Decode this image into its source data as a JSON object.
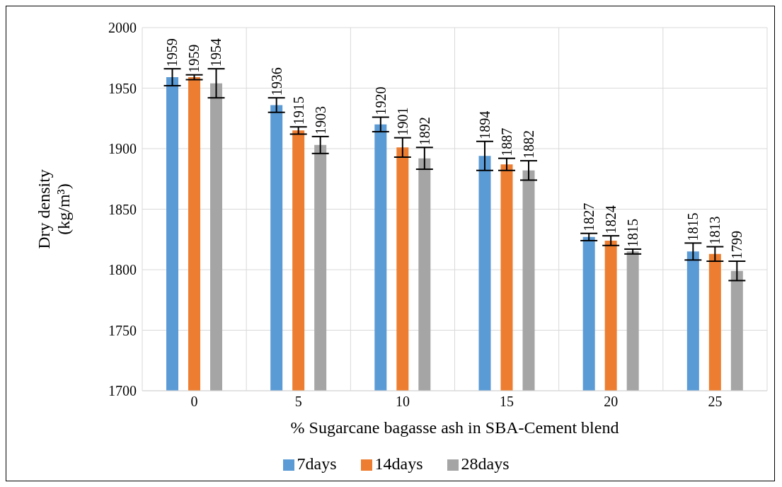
{
  "chart_data": {
    "type": "bar",
    "xlabel": "% Sugarcane bagasse ash in SBA-Cement blend",
    "ylabel": "Dry density\n(kg/m³)",
    "categories": [
      "0",
      "5",
      "10",
      "15",
      "20",
      "25"
    ],
    "series": [
      {
        "name": "7days",
        "color": "#5b9bd5",
        "values": [
          1959,
          1936,
          1920,
          1894,
          1827,
          1815
        ],
        "errors": [
          7,
          6,
          6,
          12,
          3,
          7
        ]
      },
      {
        "name": "14days",
        "color": "#ed7d31",
        "values": [
          1959,
          1915,
          1901,
          1887,
          1824,
          1813
        ],
        "errors": [
          2,
          3,
          8,
          5,
          4,
          6
        ]
      },
      {
        "name": "28days",
        "color": "#a5a5a5",
        "values": [
          1954,
          1903,
          1892,
          1882,
          1815,
          1799
        ],
        "errors": [
          12,
          7,
          9,
          8,
          2,
          8
        ]
      }
    ],
    "ylim": [
      1700,
      2000
    ],
    "yticks": [
      1700,
      1750,
      1800,
      1850,
      1900,
      1950,
      2000
    ],
    "grid": true,
    "legend": "bottom",
    "data_labels": true
  }
}
